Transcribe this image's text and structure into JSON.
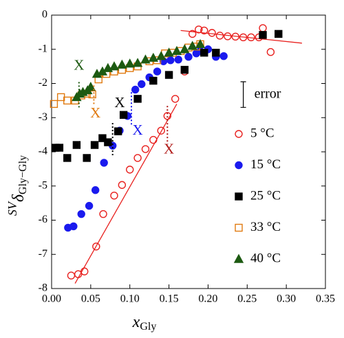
{
  "chart_data": {
    "type": "scatter",
    "xlabel": {
      "main": "x",
      "sub": "Gly"
    },
    "ylabel": {
      "prefix": "SV",
      "main": "δ",
      "sub": "Gly−Gly"
    },
    "xlim": [
      0,
      0.35
    ],
    "ylim": [
      -8,
      0
    ],
    "xticks": [
      {
        "value": 0,
        "label": "0.00"
      },
      0.05,
      {
        "value": 0.1,
        "label": "0.10"
      },
      0.15,
      {
        "value": 0.2,
        "label": "0.20"
      },
      0.25,
      {
        "value": 0.3,
        "label": "0.30"
      },
      0.35
    ],
    "yticks": [
      -8,
      -7,
      -6,
      -5,
      -4,
      -3,
      -2,
      -1,
      0
    ],
    "grid": false,
    "legend": "right",
    "series": [
      {
        "name": "5 °C",
        "color": "#e8201e",
        "marker": "circle",
        "filled": false,
        "x": [
          0.025,
          0.034,
          0.042,
          0.057,
          0.066,
          0.08,
          0.09,
          0.1,
          0.11,
          0.12,
          0.13,
          0.14,
          0.148,
          0.158,
          0.17,
          0.18,
          0.188,
          0.195,
          0.205,
          0.215,
          0.225,
          0.235,
          0.245,
          0.255,
          0.265,
          0.27,
          0.28
        ],
        "values": [
          -7.62,
          -7.58,
          -7.5,
          -6.77,
          -5.82,
          -5.28,
          -4.97,
          -4.52,
          -4.18,
          -3.92,
          -3.65,
          -3.38,
          -2.95,
          -2.45,
          -1.65,
          -0.55,
          -0.42,
          -0.45,
          -0.52,
          -0.6,
          -0.62,
          -0.63,
          -0.65,
          -0.65,
          -0.65,
          -0.38,
          -1.08
        ]
      },
      {
        "name": "15 °C",
        "color": "#1a1aee",
        "marker": "circle",
        "filled": true,
        "x": [
          0.021,
          0.028,
          0.038,
          0.048,
          0.056,
          0.067,
          0.078,
          0.087,
          0.097,
          0.107,
          0.115,
          0.125,
          0.135,
          0.143,
          0.152,
          0.162,
          0.175,
          0.185,
          0.19,
          0.2,
          0.21,
          0.22
        ],
        "values": [
          -6.22,
          -6.18,
          -5.82,
          -5.58,
          -5.12,
          -4.32,
          -3.82,
          -3.38,
          -2.95,
          -2.18,
          -2.02,
          -1.82,
          -1.65,
          -1.35,
          -1.32,
          -1.3,
          -1.22,
          -1.12,
          -1.05,
          -1.0,
          -1.22,
          -1.2
        ]
      },
      {
        "name": "25 °C",
        "color": "#000000",
        "marker": "square",
        "filled": true,
        "x": [
          0.005,
          0.01,
          0.02,
          0.032,
          0.045,
          0.055,
          0.065,
          0.072,
          0.085,
          0.092,
          0.11,
          0.13,
          0.15,
          0.17,
          0.195,
          0.21,
          0.27,
          0.29
        ],
        "values": [
          -3.88,
          -3.88,
          -4.18,
          -3.8,
          -4.18,
          -3.8,
          -3.6,
          -3.72,
          -3.4,
          -2.92,
          -2.45,
          -1.92,
          -1.75,
          -1.6,
          -1.1,
          -1.1,
          -0.58,
          -0.55
        ]
      },
      {
        "name": "33 °C",
        "color": "#e07a10",
        "marker": "square",
        "filled": false,
        "x": [
          0.003,
          0.012,
          0.02,
          0.03,
          0.038,
          0.045,
          0.052,
          0.06,
          0.07,
          0.08,
          0.09,
          0.1,
          0.11,
          0.125,
          0.135,
          0.145,
          0.155,
          0.165,
          0.175,
          0.185,
          0.19
        ],
        "values": [
          -2.6,
          -2.4,
          -2.5,
          -2.5,
          -2.35,
          -2.3,
          -2.32,
          -1.88,
          -1.72,
          -1.65,
          -1.6,
          -1.55,
          -1.5,
          -1.35,
          -1.32,
          -1.12,
          -1.1,
          -1.05,
          -0.95,
          -0.92,
          -0.85
        ]
      },
      {
        "name": "40 °C",
        "color": "#1d5a12",
        "marker": "triangle",
        "filled": true,
        "x": [
          0.032,
          0.036,
          0.04,
          0.046,
          0.05,
          0.058,
          0.065,
          0.072,
          0.08,
          0.09,
          0.1,
          0.11,
          0.12,
          0.13,
          0.14,
          0.15,
          0.16,
          0.17,
          0.18,
          0.19
        ],
        "values": [
          -2.4,
          -2.3,
          -2.25,
          -2.2,
          -2.1,
          -1.72,
          -1.65,
          -1.55,
          -1.5,
          -1.45,
          -1.42,
          -1.4,
          -1.3,
          -1.25,
          -1.2,
          -1.1,
          -1.05,
          -1.0,
          -0.9,
          -0.85
        ]
      }
    ],
    "fits": [
      {
        "color": "#e8201e",
        "x": [
          0.03,
          0.16
        ],
        "values": [
          -7.85,
          -2.6
        ]
      },
      {
        "color": "#e8201e",
        "x": [
          0.165,
          0.32
        ],
        "values": [
          -0.45,
          -0.82
        ]
      }
    ],
    "markers": [
      {
        "text": "X",
        "color": "#1d5a12",
        "x": 0.035,
        "y": -1.5,
        "line_x": 0.035,
        "line_y": [
          -2.7,
          -1.9
        ]
      },
      {
        "text": "X",
        "color": "#e07a10",
        "x": 0.056,
        "y": -2.9,
        "line_x": 0.054,
        "line_y": [
          -2.6,
          -2.0
        ]
      },
      {
        "text": "X",
        "color": "#000000",
        "x": 0.087,
        "y": -2.6,
        "line_x": 0.078,
        "line_y": [
          -4.1,
          -3.1
        ]
      },
      {
        "text": "X",
        "color": "#1a1aee",
        "x": 0.11,
        "y": -3.4,
        "line_x": 0.102,
        "line_y": [
          -3.2,
          -2.2
        ]
      },
      {
        "text": "X",
        "color": "#b01a18",
        "x": 0.15,
        "y": -3.95,
        "line_x": 0.148,
        "line_y": [
          -3.7,
          -2.6
        ]
      }
    ],
    "error_bar": {
      "label": "error",
      "x": 0.245,
      "values": [
        -2.7,
        -1.95
      ]
    }
  }
}
